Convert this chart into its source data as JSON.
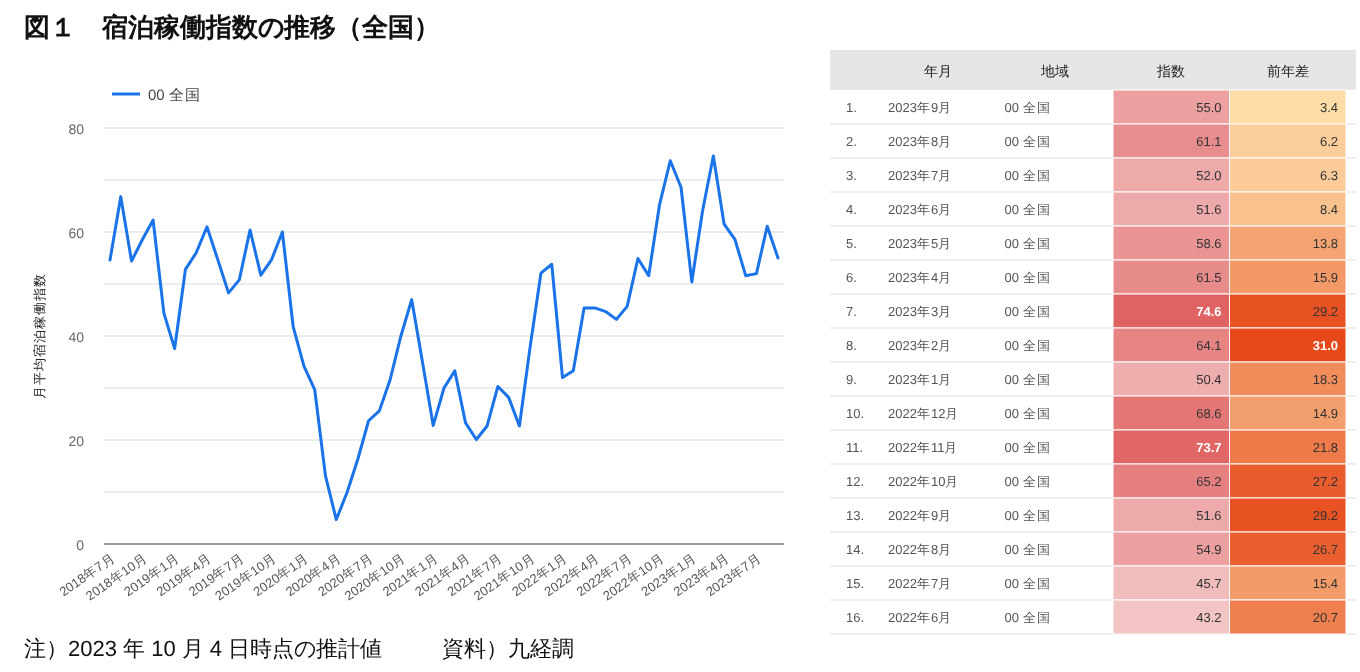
{
  "chart_data": [
    {
      "type": "line",
      "title": "図１　宿泊稼働指数の推移（全国）",
      "ylabel": "月平均宿泊稼働指数",
      "categories": [
        "2018年7月",
        null,
        null,
        "2018年10月",
        null,
        null,
        "2019年1月",
        null,
        null,
        "2019年4月",
        null,
        null,
        "2019年7月",
        null,
        null,
        "2019年10月",
        null,
        null,
        "2020年1月",
        null,
        null,
        "2020年4月",
        null,
        null,
        "2020年7月",
        null,
        null,
        "2020年10月",
        null,
        null,
        "2021年1月",
        null,
        null,
        "2021年4月",
        null,
        null,
        "2021年7月",
        null,
        null,
        "2021年10月",
        null,
        null,
        "2022年1月",
        null,
        null,
        "2022年4月",
        null,
        null,
        "2022年7月",
        null,
        null,
        "2022年10月",
        null,
        null,
        "2023年1月",
        null,
        null,
        "2023年4月",
        null,
        null,
        "2023年7月",
        null,
        null
      ],
      "series": [
        {
          "name": "00 全国",
          "color": "#1a73e8",
          "values": [
            54.6,
            66.8,
            54.4,
            58.5,
            62.3,
            44.4,
            37.6,
            52.8,
            56,
            61,
            54.7,
            48.3,
            50.8,
            60.4,
            51.7,
            54.7,
            60,
            41.8,
            34.2,
            29.7,
            13.1,
            4.7,
            9.9,
            16.3,
            23.7,
            25.6,
            31.6,
            40,
            47,
            35,
            22.8,
            30,
            33.3,
            23.3,
            20.1,
            22.7,
            30.3,
            28.2,
            22.7,
            38,
            52.1,
            53.8,
            32,
            33.3,
            45.4,
            45.4,
            44.7,
            43.2,
            45.7,
            54.9,
            51.6,
            65.2,
            73.7,
            68.6,
            50.4,
            64.1,
            74.6,
            61.5,
            58.6,
            51.6,
            52.0,
            61.1,
            55.0
          ]
        }
      ],
      "ylim": [
        0,
        80
      ],
      "yticks": [
        0,
        {
          "value": 10,
          "label": null
        },
        20,
        {
          "value": 30,
          "label": null
        },
        40,
        {
          "value": 50,
          "label": null
        },
        60,
        {
          "value": 70,
          "label": null
        },
        80
      ],
      "grid": "y",
      "legend": "top left",
      "marker": "none",
      "line_style": "solid",
      "annotations": [
        "注）2023 年 10 月 4 日時点の推計値",
        "資料）九経調"
      ]
    },
    {
      "type": "heatmap",
      "categories": [
        "年月",
        "地域",
        "指数",
        "前年差"
      ],
      "y_categories": [
        "1.",
        "2.",
        "3.",
        "4.",
        "5.",
        "6.",
        "7.",
        "8.",
        "9.",
        "10.",
        "11.",
        "12.",
        "13.",
        "14.",
        "15.",
        "16."
      ],
      "cells": [
        [
          null,
          null,
          55.0,
          3.4
        ],
        [
          null,
          null,
          61.1,
          6.2
        ],
        [
          null,
          null,
          52.0,
          6.3
        ],
        [
          null,
          null,
          51.6,
          8.4
        ],
        [
          null,
          null,
          58.6,
          13.8
        ],
        [
          null,
          null,
          61.5,
          15.9
        ],
        [
          null,
          null,
          74.6,
          29.2
        ],
        [
          null,
          null,
          64.1,
          31.0
        ],
        [
          null,
          null,
          50.4,
          18.3
        ],
        [
          null,
          null,
          68.6,
          14.9
        ],
        [
          null,
          null,
          73.7,
          21.8
        ],
        [
          null,
          null,
          65.2,
          27.2
        ],
        [
          null,
          null,
          51.6,
          29.2
        ],
        [
          null,
          null,
          54.9,
          26.7
        ],
        [
          null,
          null,
          45.7,
          15.4
        ],
        [
          null,
          null,
          43.2,
          20.7
        ]
      ],
      "cell_labels": [
        [
          "2023年9月",
          "00 全国",
          "55.0",
          "3.4"
        ],
        [
          "2023年8月",
          "00 全国",
          "61.1",
          "6.2"
        ],
        [
          "2023年7月",
          "00 全国",
          "52.0",
          "6.3"
        ],
        [
          "2023年6月",
          "00 全国",
          "51.6",
          "8.4"
        ],
        [
          "2023年5月",
          "00 全国",
          "58.6",
          "13.8"
        ],
        [
          "2023年4月",
          "00 全国",
          "61.5",
          "15.9"
        ],
        [
          "2023年3月",
          "00 全国",
          "74.6",
          "29.2"
        ],
        [
          "2023年2月",
          "00 全国",
          "64.1",
          "31.0"
        ],
        [
          "2023年1月",
          "00 全国",
          "50.4",
          "18.3"
        ],
        [
          "2022年12月",
          "00 全国",
          "68.6",
          "14.9"
        ],
        [
          "2022年11月",
          "00 全国",
          "73.7",
          "21.8"
        ],
        [
          "2022年10月",
          "00 全国",
          "65.2",
          "27.2"
        ],
        [
          "2022年9月",
          "00 全国",
          "51.6",
          "29.2"
        ],
        [
          "2022年8月",
          "00 全国",
          "54.9",
          "26.7"
        ],
        [
          "2022年7月",
          "00 全国",
          "45.7",
          "15.4"
        ],
        [
          "2022年6月",
          "00 全国",
          "43.2",
          "20.7"
        ]
      ],
      "colors": [
        null,
        null,
        [
          "#f3c4c4",
          "#e06363"
        ],
        [
          "#fddca8",
          "#e6481a"
        ]
      ],
      "data_labels": true
    }
  ]
}
